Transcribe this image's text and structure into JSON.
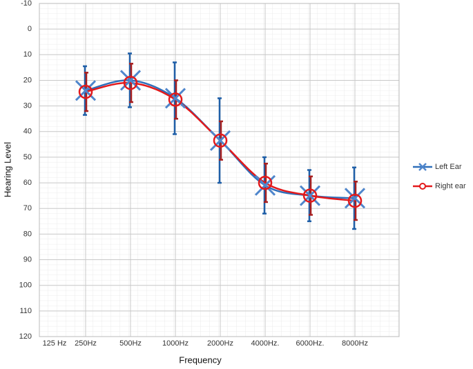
{
  "chart_data": {
    "type": "line",
    "x_label": "Frequency",
    "y_label": "Hearing Level",
    "categories": [
      "125 Hz",
      "250Hz",
      "500Hz",
      "1000Hz",
      "2000Hz",
      "4000Hz.",
      "6000Hz.",
      "8000Hz"
    ],
    "series": [
      {
        "name": "Left Ear",
        "color": "#2f6fba",
        "marker": "x",
        "values": [
          null,
          24,
          20,
          27,
          43.5,
          61,
          65,
          66
        ],
        "errors": [
          null,
          9.5,
          10.5,
          14,
          16.5,
          11,
          10,
          12
        ]
      },
      {
        "name": "Right ear",
        "color": "#e3191b",
        "marker": "circle",
        "values": [
          null,
          24.5,
          21,
          27.5,
          43.5,
          60,
          65,
          67
        ],
        "errors": [
          null,
          7.5,
          7.5,
          7.5,
          7.5,
          7.5,
          7.5,
          7.5
        ]
      }
    ],
    "ylim": [
      -10,
      120
    ],
    "y_inverted": true,
    "yticks": [
      -10,
      0,
      10,
      20,
      30,
      40,
      50,
      60,
      70,
      80,
      90,
      100,
      110,
      120
    ],
    "grid": true,
    "legend": "right",
    "smooth": true
  }
}
